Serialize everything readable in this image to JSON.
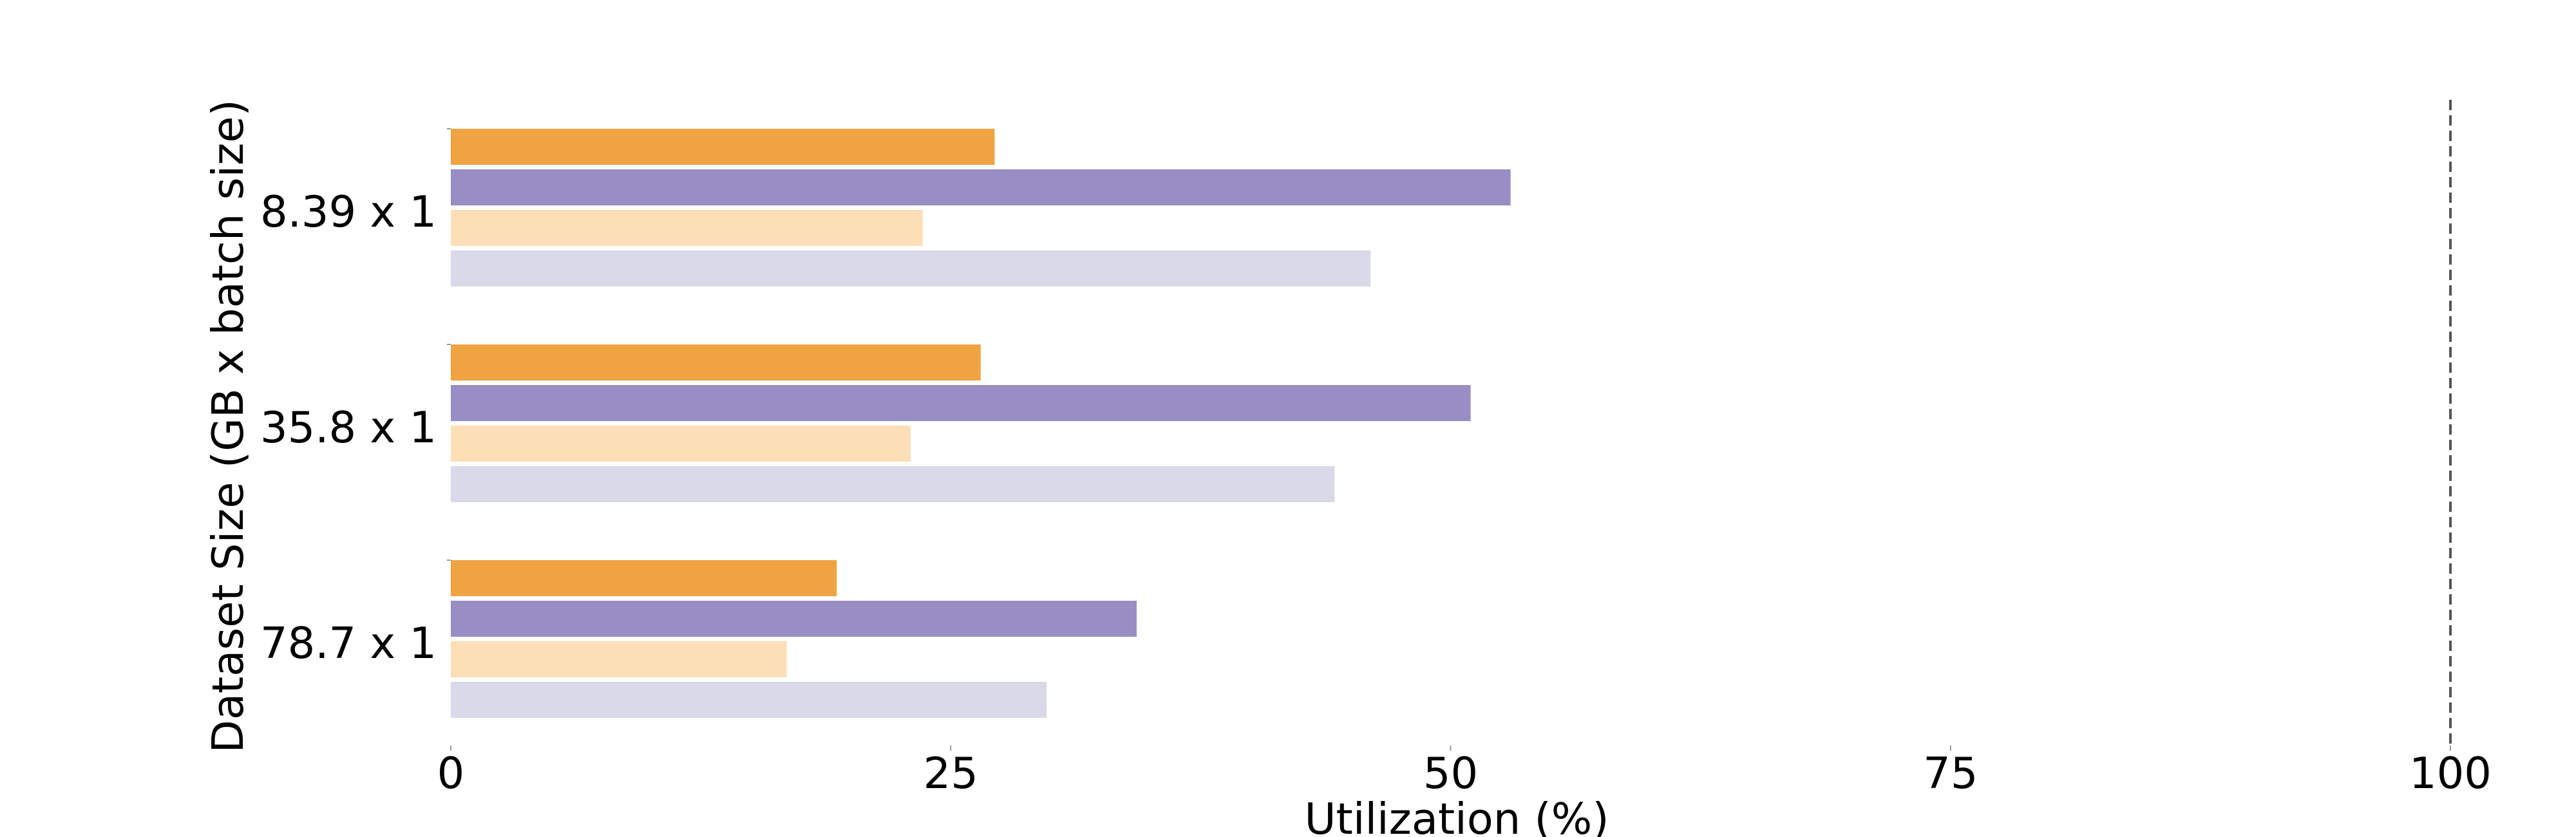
{
  "chart_data": {
    "type": "bar",
    "orientation": "horizontal",
    "categories": [
      "8.39 x 1",
      "35.8 x 1",
      "78.7 x 1"
    ],
    "series": [
      {
        "values": [
          27.2,
          26.5,
          19.3
        ],
        "color": "#F0A342"
      },
      {
        "values": [
          53.0,
          51.0,
          34.3
        ],
        "color": "#988EC3"
      },
      {
        "values": [
          23.6,
          23.0,
          16.8
        ],
        "color": "#FDDFB7"
      },
      {
        "values": [
          46.0,
          44.2,
          29.8
        ],
        "color": "#D9D9EA"
      }
    ],
    "xlabel": "Utilization (%)",
    "ylabel": "Dataset Size (GB x batch size)",
    "xlim": [
      0,
      100
    ],
    "xticks": [
      0,
      25,
      50,
      75,
      100
    ],
    "xtick_labels": [
      "0",
      "25",
      "50",
      "75",
      "100"
    ],
    "reference_line": {
      "x": 100,
      "style": "dashed"
    },
    "grid": false,
    "legend": "none"
  }
}
